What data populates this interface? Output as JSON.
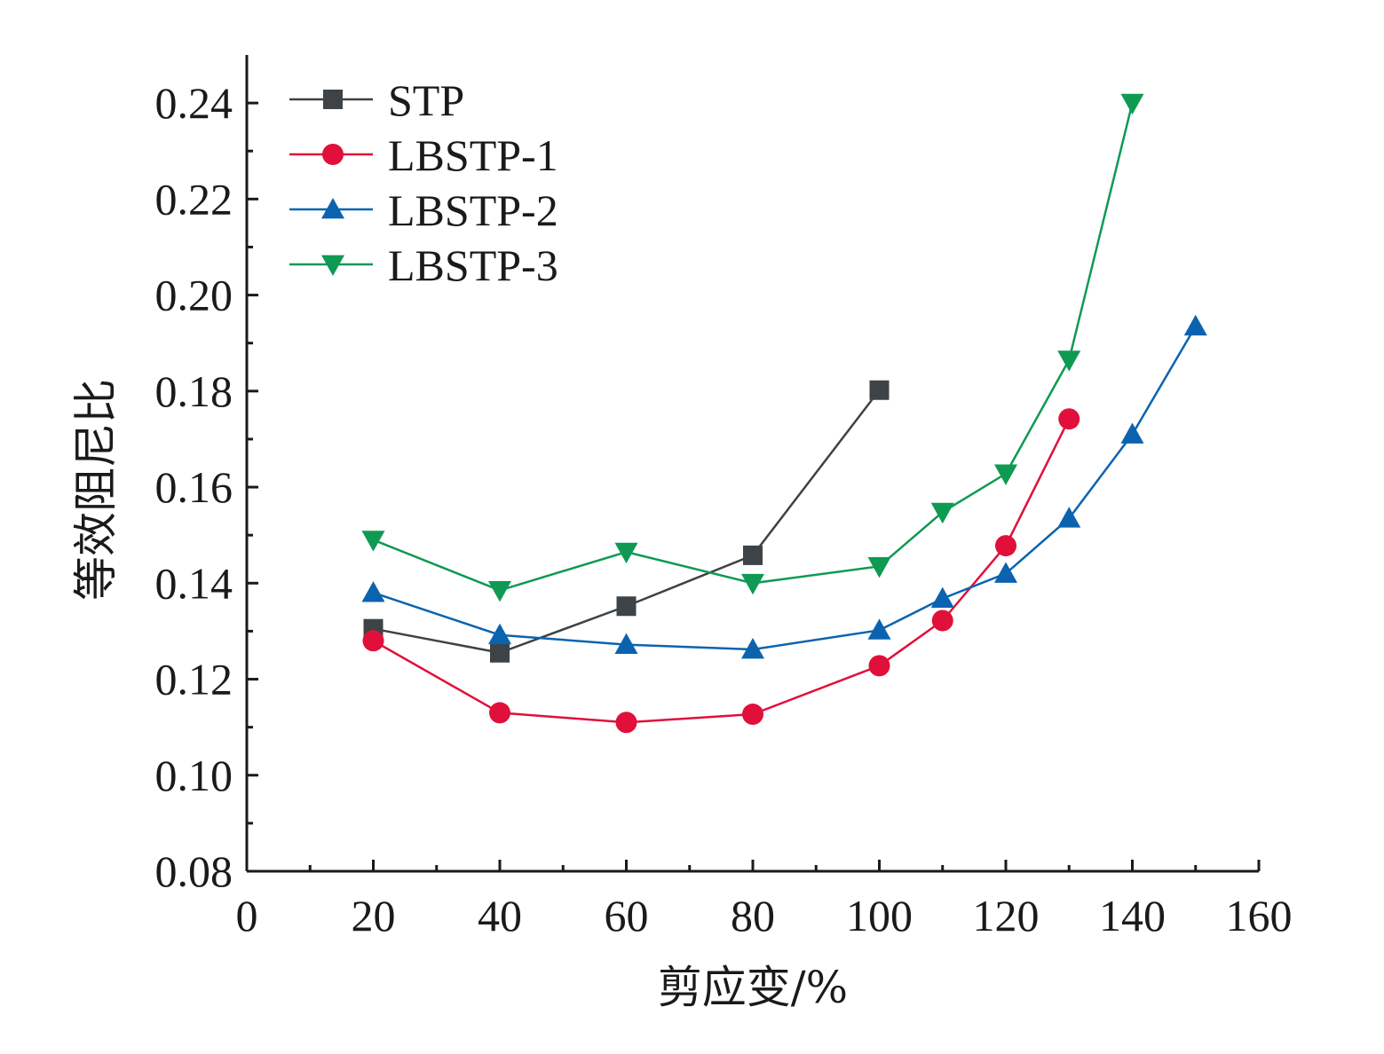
{
  "chart_data": {
    "type": "line",
    "xlabel": "剪应变/%",
    "ylabel": "等效阻尼比",
    "xlim": [
      0,
      160
    ],
    "ylim": [
      0.08,
      0.25
    ],
    "x_ticks": [
      0,
      20,
      40,
      60,
      80,
      100,
      120,
      140,
      160
    ],
    "x_tick_labels": [
      "0",
      "20",
      "40",
      "60",
      "80",
      "100",
      "120",
      "140",
      "160"
    ],
    "y_ticks": [
      0.08,
      0.1,
      0.12,
      0.14,
      0.16,
      0.18,
      0.2,
      0.22,
      0.24
    ],
    "y_tick_labels": [
      "0.08",
      "0.10",
      "0.12",
      "0.14",
      "0.16",
      "0.18",
      "0.20",
      "0.22",
      "0.24"
    ],
    "grid": false,
    "legend_position": "top-left",
    "series": [
      {
        "name": "STP",
        "color": "#3d4346",
        "marker": "square",
        "x": [
          20,
          40,
          60,
          80,
          100
        ],
        "y": [
          0.1305,
          0.1255,
          0.1352,
          0.1458,
          0.1802
        ]
      },
      {
        "name": "LBSTP-1",
        "color": "#e0103a",
        "marker": "circle",
        "x": [
          20,
          40,
          60,
          80,
          100,
          110,
          120,
          130
        ],
        "y": [
          0.128,
          0.113,
          0.111,
          0.1127,
          0.1228,
          0.1322,
          0.1478,
          0.1742
        ]
      },
      {
        "name": "LBSTP-2",
        "color": "#0b63b0",
        "marker": "triangle-up",
        "x": [
          20,
          40,
          60,
          80,
          100,
          110,
          120,
          130,
          140,
          150
        ],
        "y": [
          0.138,
          0.1292,
          0.1272,
          0.1262,
          0.1302,
          0.1368,
          0.142,
          0.1535,
          0.171,
          0.1935
        ]
      },
      {
        "name": "LBSTP-3",
        "color": "#0e9a52",
        "marker": "triangle-down",
        "x": [
          20,
          40,
          60,
          80,
          100,
          110,
          120,
          130,
          140
        ],
        "y": [
          0.149,
          0.1385,
          0.1465,
          0.14,
          0.1435,
          0.1548,
          0.1628,
          0.1865,
          0.24
        ]
      }
    ]
  }
}
